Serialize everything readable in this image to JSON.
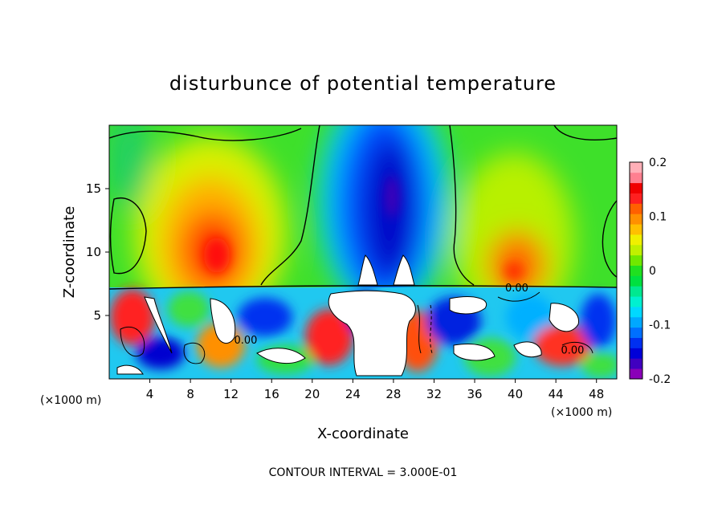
{
  "chart_data": {
    "type": "heatmap",
    "title": "disturbunce of potential temperature",
    "xlabel": "X-coordinate",
    "ylabel": "Z-coordinate",
    "x_unit_left": "(×1000 m)",
    "x_unit_right": "(×1000 m)",
    "xlim": [
      0,
      50
    ],
    "ylim": [
      0,
      20
    ],
    "xticks": [
      "4",
      "8",
      "12",
      "16",
      "20",
      "24",
      "28",
      "32",
      "36",
      "40",
      "44",
      "48"
    ],
    "yticks": [
      "5",
      "10",
      "15"
    ],
    "colorbar": {
      "range": [
        -0.2,
        0.2
      ],
      "ticks": [
        "0.2",
        "0.1",
        "0",
        "-0.1",
        "-0.2"
      ],
      "colors": [
        "#8a00b8",
        "#4000c0",
        "#0000d8",
        "#0030f0",
        "#0070ff",
        "#00a8ff",
        "#00d8ff",
        "#00f0d0",
        "#00e890",
        "#00e040",
        "#20e020",
        "#70e800",
        "#c0f000",
        "#f0f000",
        "#ffc000",
        "#ff9000",
        "#ff6000",
        "#ff2020",
        "#f00000",
        "#ff8090",
        "#ffb0b8"
      ]
    },
    "contour_labels": [
      "0.00",
      "0.00",
      "0.00"
    ],
    "note": "CONTOUR INTERVAL = 3.000E-01",
    "features": {
      "warm_anomalies": [
        {
          "x": 10.5,
          "z": 10.5,
          "value": 0.17
        },
        {
          "x": 40.5,
          "z": 9.5,
          "value": 0.12
        }
      ],
      "cold_anomaly": {
        "x": 27,
        "z": 14,
        "value": -0.19
      },
      "turbulent_layer_top_z": 7.3
    }
  }
}
